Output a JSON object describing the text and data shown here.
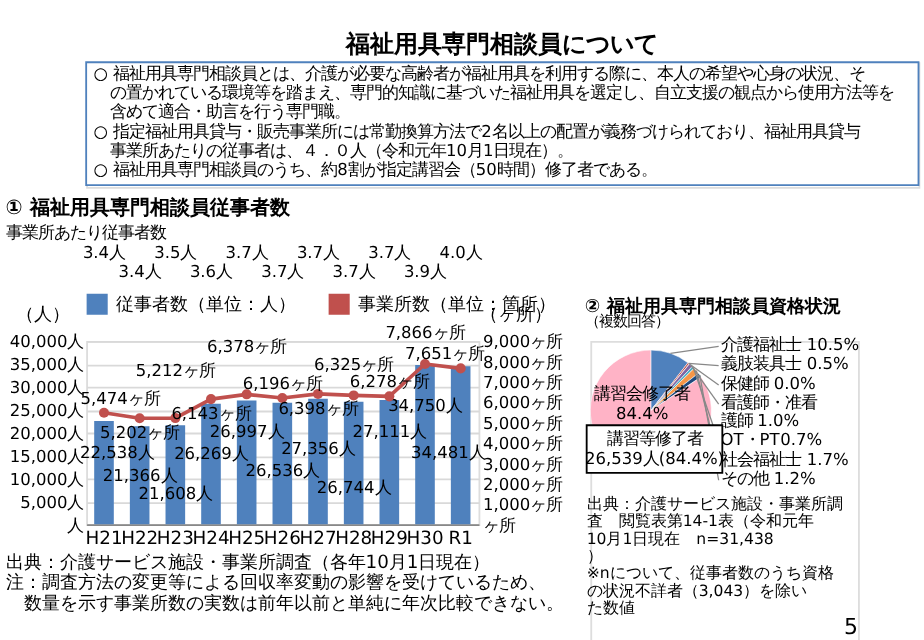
{
  "chart_data": [
    {
      "type": "other",
      "title": "福祉用具専門相談員について",
      "annotations": [
        "○ 福祉用具専門相談員とは、介護が必要な高齢者が福祉用具を利用する際に、本人の希望や心身の状況、その置かれている環境等を踏まえ、専門的知識に基づいた福祉用具を選定し、自立支援の観点から使用方法等を含めて適合・助言を行う専門職。",
        "○ 指定福祉用具貸与・販売事業所には常勤換算方法で2名以上の配置が義務づけられており、福祉用具貸与事業所あたりの従事者は、４．０人（令和元年10月1日現在）。",
        "○ 福祉用具専門相談員のうち、約8割が指定講習会（50時間）修了者である。"
      ]
    },
    {
      "type": "bar",
      "title": "① 福祉用具専門相談員従事者数",
      "categories": [
        "H21",
        "H22",
        "H23",
        "H24",
        "H25",
        "H26",
        "H27",
        "H28",
        "H29",
        "H30",
        "R1"
      ],
      "series": [
        {
          "name": "従事者数（単位：人）",
          "color": "#4f81bd",
          "values": [
            22538,
            21366,
            21608,
            26269,
            26997,
            26536,
            27356,
            26744,
            27111,
            34750,
            34481
          ],
          "value_labels": [
            "22,538人",
            "21,366人",
            "21,608人",
            "26,269人",
            "26,997人",
            "26,536人",
            "27,356人",
            "26,744人",
            "27,111人",
            "34,750人",
            "34,481人"
          ]
        },
        {
          "name": "事業所数（単位：箇所）",
          "type": "line",
          "axis": "y2",
          "color": "#c0504d",
          "marker": "circle",
          "values": [
            5474,
            5202,
            5212,
            6143,
            6378,
            6196,
            6398,
            6325,
            6278,
            7866,
            7651
          ],
          "value_labels": [
            "5,474ヶ所",
            "5,202ヶ所",
            "5,212ヶ所",
            "6,143ヶ所",
            "6,378ヶ所",
            "6,196ヶ所",
            "6,398ヶ所",
            "6,325ヶ所",
            "6,278ヶ所",
            "7,866ヶ所",
            "7,651ヶ所"
          ]
        }
      ],
      "ylabel": "（人）",
      "y2label": "（ヶ所）",
      "ylim": [
        0,
        40000
      ],
      "yticks": [
        {
          "value": 0,
          "label": "人"
        },
        {
          "value": 5000,
          "label": "5,000人"
        },
        {
          "value": 10000,
          "label": "10,000人"
        },
        {
          "value": 15000,
          "label": "15,000人"
        },
        {
          "value": 20000,
          "label": "20,000人"
        },
        {
          "value": 25000,
          "label": "25,000人"
        },
        {
          "value": 30000,
          "label": "30,000人"
        },
        {
          "value": 35000,
          "label": "35,000人"
        },
        {
          "value": 40000,
          "label": "40,000人"
        }
      ],
      "y2lim": [
        0,
        9000
      ],
      "y2ticks": [
        {
          "value": 0,
          "label": "ヶ所"
        },
        {
          "value": 1000,
          "label": "1,000ヶ所"
        },
        {
          "value": 2000,
          "label": "2,000ヶ所"
        },
        {
          "value": 3000,
          "label": "3,000ヶ所"
        },
        {
          "value": 4000,
          "label": "4,000ヶ所"
        },
        {
          "value": 5000,
          "label": "5,000ヶ所"
        },
        {
          "value": 6000,
          "label": "6,000ヶ所"
        },
        {
          "value": 7000,
          "label": "7,000ヶ所"
        },
        {
          "value": 8000,
          "label": "8,000ヶ所"
        },
        {
          "value": 9000,
          "label": "9,000ヶ所"
        }
      ],
      "grid": "y",
      "legend": "top",
      "annotations": [
        "事業所あたり従事者数",
        "3.4人",
        "3.4人",
        "3.5人",
        "3.6人",
        "3.7人",
        "3.7人",
        "3.7人",
        "3.7人",
        "3.7人",
        "3.9人",
        "4.0人",
        "出典：介護サービス施設・事業所調査（各年10月1日現在）",
        "注：調査方法の変更等による回収率変動の影響を受けているため、数量を示す事業所数の実数は前年以前と単純に年次比較できない。"
      ]
    },
    {
      "type": "pie",
      "title": "② 福祉用具専門相談員資格状況",
      "subtitle": "（複数回答）",
      "categories": [
        "介護福祉士",
        "義肢装具士",
        "保健師",
        "看護師・准看護師",
        "OT・PT",
        "社会福祉士",
        "その他",
        "講習会修了者"
      ],
      "values": [
        10.5,
        0.5,
        0.0,
        1.0,
        0.7,
        1.7,
        1.2,
        84.4
      ],
      "value_labels": [
        "10.5%",
        "0.5%",
        "0.0%",
        "1.0%",
        "0.7%",
        "1.7%",
        "1.2%",
        "84.4%"
      ],
      "colors": [
        "#4f81bd",
        "#c0504d",
        "#9bbb59",
        "#8064a2",
        "#4bacc6",
        "#f79646",
        "#1f497d",
        "#ffb3c6"
      ],
      "annotations": [
        "講習等修了者\n26,539人(84.4%)",
        "出典：介護サービス施設・事業所調査　閲覧表第14-1表（令和元年10月1日現在　n=31,438）",
        "※nについて、従事者数のうち資格の状況不詳者（3,043）を除いた数値",
        "5"
      ]
    }
  ]
}
